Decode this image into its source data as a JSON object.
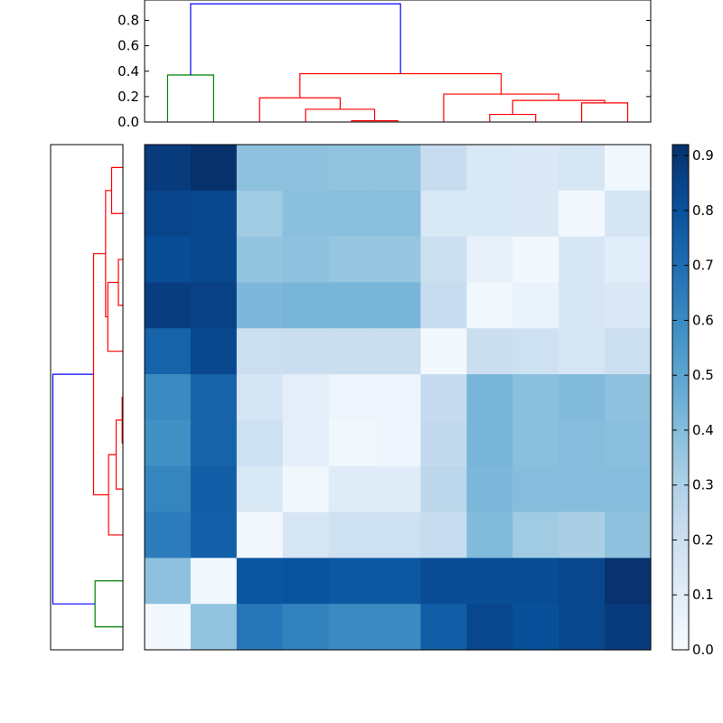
{
  "chart_data": {
    "type": "heatmap",
    "title": "",
    "xlabel": "",
    "ylabel": "",
    "colormap": "Blues",
    "colors": {
      "cluster_green": "#008000",
      "cluster_red": "#ff0000",
      "root_blue": "#0000ff"
    },
    "colorbar": {
      "vmin": 0.0,
      "vmax": 0.92,
      "ticks": [
        0.0,
        0.1,
        0.2,
        0.3,
        0.4,
        0.5,
        0.6,
        0.7,
        0.8,
        0.9
      ],
      "tick_labels": [
        "0.0",
        "0.1",
        "0.2",
        "0.3",
        "0.4",
        "0.5",
        "0.6",
        "0.7",
        "0.8",
        "0.9"
      ]
    },
    "matrix": [
      [
        0.88,
        0.92,
        0.38,
        0.38,
        0.37,
        0.37,
        0.22,
        0.14,
        0.13,
        0.15,
        0.03
      ],
      [
        0.85,
        0.84,
        0.34,
        0.39,
        0.39,
        0.39,
        0.14,
        0.14,
        0.13,
        0.02,
        0.16
      ],
      [
        0.82,
        0.84,
        0.37,
        0.38,
        0.36,
        0.36,
        0.2,
        0.07,
        0.02,
        0.15,
        0.1
      ],
      [
        0.87,
        0.86,
        0.42,
        0.43,
        0.43,
        0.43,
        0.22,
        0.03,
        0.06,
        0.15,
        0.13
      ],
      [
        0.74,
        0.84,
        0.2,
        0.21,
        0.21,
        0.21,
        0.02,
        0.21,
        0.19,
        0.15,
        0.2
      ],
      [
        0.6,
        0.74,
        0.16,
        0.09,
        0.04,
        0.04,
        0.23,
        0.43,
        0.39,
        0.41,
        0.38
      ],
      [
        0.58,
        0.74,
        0.19,
        0.09,
        0.03,
        0.04,
        0.24,
        0.43,
        0.39,
        0.4,
        0.39
      ],
      [
        0.62,
        0.76,
        0.14,
        0.03,
        0.11,
        0.11,
        0.26,
        0.42,
        0.4,
        0.4,
        0.4
      ],
      [
        0.65,
        0.75,
        0.02,
        0.15,
        0.19,
        0.19,
        0.22,
        0.41,
        0.34,
        0.31,
        0.38
      ],
      [
        0.38,
        0.02,
        0.79,
        0.8,
        0.78,
        0.78,
        0.82,
        0.82,
        0.82,
        0.84,
        0.91
      ],
      [
        0.02,
        0.37,
        0.67,
        0.63,
        0.6,
        0.6,
        0.76,
        0.84,
        0.81,
        0.84,
        0.88
      ]
    ],
    "dendrogram_top": {
      "ylim": [
        0.0,
        0.96
      ],
      "yticks": [
        0.0,
        0.2,
        0.4,
        0.6,
        0.8
      ],
      "ytick_labels": [
        "0.0",
        "0.2",
        "0.4",
        "0.6",
        "0.8"
      ],
      "leaf_count": 11,
      "links": [
        {
          "left": 0,
          "right": 1,
          "height": 0.37,
          "color": "cluster_green"
        },
        {
          "left": 4,
          "right": 5,
          "height": 0.01,
          "color": "cluster_red"
        },
        {
          "left": 3,
          "right": "4+5",
          "height": 0.1,
          "color": "cluster_red"
        },
        {
          "left": 2,
          "right": "3+4+5",
          "height": 0.19,
          "color": "cluster_red"
        },
        {
          "left": 7,
          "right": 8,
          "height": 0.06,
          "color": "cluster_red"
        },
        {
          "left": 9,
          "right": 10,
          "height": 0.15,
          "color": "cluster_red"
        },
        {
          "left": "9+10",
          "right": "7+8",
          "height": 0.17,
          "color": "cluster_red"
        },
        {
          "left": 6,
          "right": "7+8+9+10",
          "height": 0.22,
          "color": "cluster_red"
        },
        {
          "left": "2..5",
          "right": "6..10",
          "height": 0.38,
          "color": "cluster_red"
        },
        {
          "left": "0+1",
          "right": "2..10",
          "height": 0.93,
          "color": "root_blue"
        }
      ]
    },
    "dendrogram_left": {
      "xlim": [
        0.96,
        0.0
      ],
      "leaf_count": 11,
      "links": [
        {
          "top": 0,
          "bottom": 1,
          "height": 0.15,
          "color": "cluster_red"
        },
        {
          "top": 2,
          "bottom": 3,
          "height": 0.06,
          "color": "cluster_red"
        },
        {
          "top": "2+3",
          "bottom": 4,
          "height": 0.2,
          "color": "cluster_red"
        },
        {
          "top": "0+1",
          "bottom": "2..4",
          "height": 0.23,
          "color": "cluster_red"
        },
        {
          "top": 5,
          "bottom": 6,
          "height": 0.01,
          "color": "cluster_red"
        },
        {
          "top": "5+6",
          "bottom": 7,
          "height": 0.09,
          "color": "cluster_red"
        },
        {
          "top": "5..7",
          "bottom": 8,
          "height": 0.19,
          "color": "cluster_red"
        },
        {
          "top": "0..4",
          "bottom": "5..8",
          "height": 0.39,
          "color": "cluster_red"
        },
        {
          "top": 9,
          "bottom": 10,
          "height": 0.37,
          "color": "cluster_green"
        },
        {
          "top": "0..8",
          "bottom": "9+10",
          "height": 0.93,
          "color": "root_blue"
        }
      ]
    }
  }
}
